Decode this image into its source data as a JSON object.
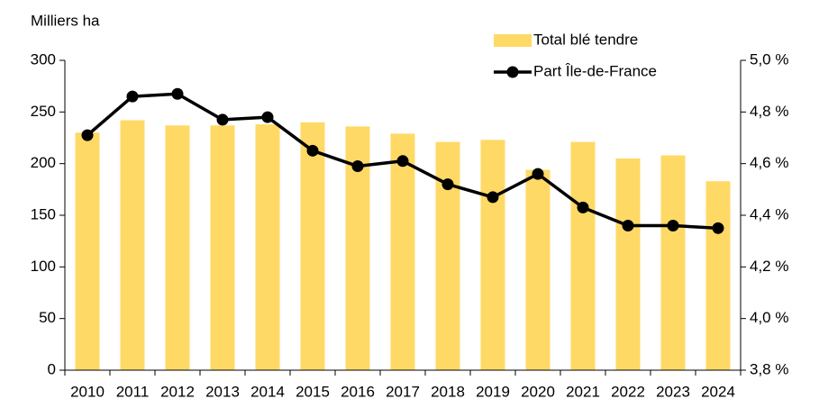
{
  "chart_data": {
    "type": "bar_line",
    "y_axis_label": "Milliers ha",
    "categories": [
      "2010",
      "2011",
      "2012",
      "2013",
      "2014",
      "2015",
      "2016",
      "2017",
      "2018",
      "2019",
      "2020",
      "2021",
      "2022",
      "2023",
      "2024"
    ],
    "series": [
      {
        "name": "Total blé tendre",
        "color": "#ffd966",
        "type": "bar",
        "values": [
          230,
          242,
          237,
          237,
          238,
          240,
          236,
          229,
          221,
          223,
          194,
          221,
          205,
          208,
          183
        ]
      },
      {
        "name": "Part Île-de-France",
        "color": "#000000",
        "type": "line",
        "axis": "y2",
        "values": [
          4.71,
          4.86,
          4.87,
          4.77,
          4.78,
          4.65,
          4.59,
          4.61,
          4.52,
          4.47,
          4.56,
          4.43,
          4.36,
          4.36,
          4.35
        ]
      }
    ],
    "ylim": [
      0,
      300
    ],
    "yticks": [
      0,
      50,
      100,
      150,
      200,
      250,
      300
    ],
    "y2lim": [
      3.8,
      5.0
    ],
    "y2ticks": [
      {
        "value": 3.8,
        "label": "3,8 %"
      },
      {
        "value": 4.0,
        "label": "4,0 %"
      },
      {
        "value": 4.2,
        "label": "4,2 %"
      },
      {
        "value": 4.4,
        "label": "4,4 %"
      },
      {
        "value": 4.6,
        "label": "4,6 %"
      },
      {
        "value": 4.8,
        "label": "4,8 %"
      },
      {
        "value": 5.0,
        "label": "5,0 %"
      }
    ],
    "legend": "top-right",
    "grid": false
  }
}
